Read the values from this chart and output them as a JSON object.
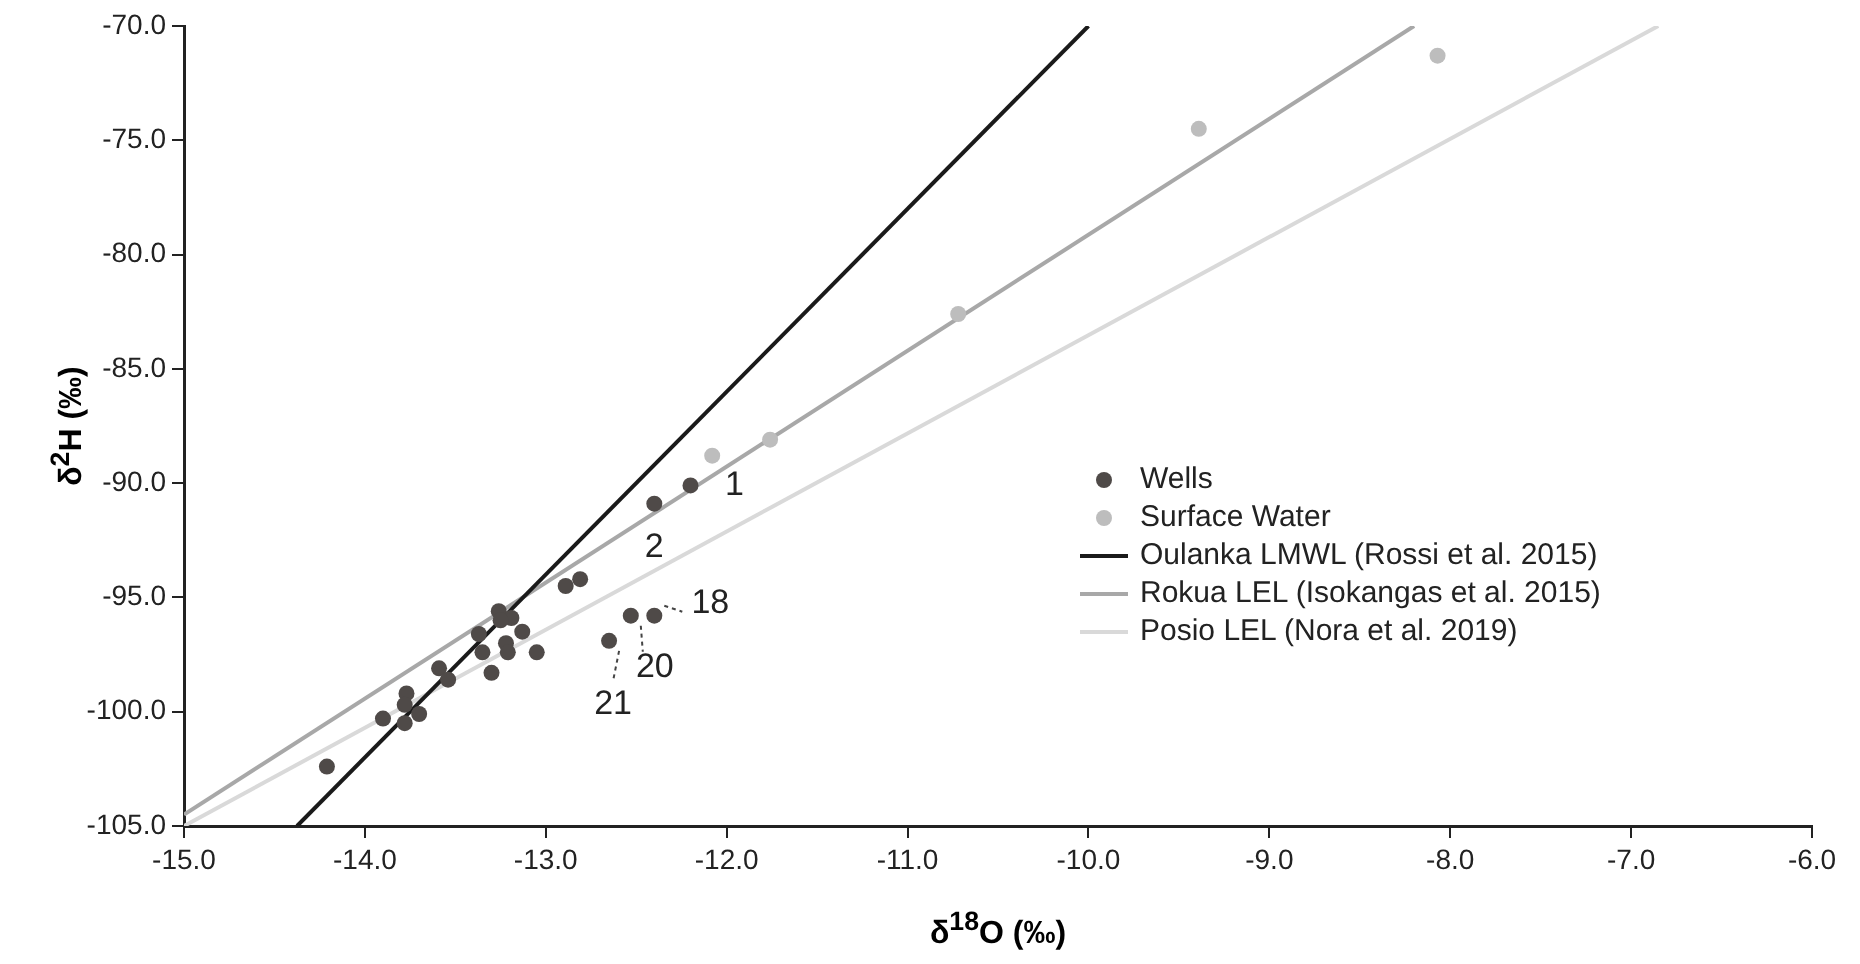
{
  "chart_data": {
    "type": "scatter",
    "xlabel": "δ$^{18}$O (‰)",
    "ylabel": "δ$^{2}$H (‰)",
    "xlim": [
      -15,
      -6
    ],
    "ylim": [
      -105,
      -70
    ],
    "xticks": [
      {
        "value": -15,
        "label": "-15.0"
      },
      {
        "value": -14,
        "label": "-14.0"
      },
      {
        "value": -13,
        "label": "-13.0"
      },
      {
        "value": -12,
        "label": "-12.0"
      },
      {
        "value": -11,
        "label": "-11.0"
      },
      {
        "value": -10,
        "label": "-10.0"
      },
      {
        "value": -9,
        "label": "-9.0"
      },
      {
        "value": -8,
        "label": "-8.0"
      },
      {
        "value": -7,
        "label": "-7.0"
      },
      {
        "value": -6,
        "label": "-6.0"
      }
    ],
    "yticks": [
      {
        "value": -105,
        "label": "-105.0"
      },
      {
        "value": -100,
        "label": "-100.0"
      },
      {
        "value": -95,
        "label": "-95.0"
      },
      {
        "value": -90,
        "label": "-90.0"
      },
      {
        "value": -85,
        "label": "-85.0"
      },
      {
        "value": -80,
        "label": "-80.0"
      },
      {
        "value": -75,
        "label": "-75.0"
      },
      {
        "value": -70,
        "label": "-70.0"
      }
    ],
    "grid": false,
    "legend": "right",
    "marker": "circle",
    "series": [
      {
        "name": "Wells",
        "color": "#4f4a48",
        "x": [
          -12.2,
          -12.4,
          -12.81,
          -12.89,
          -12.4,
          -12.53,
          -12.65,
          -13.26,
          -13.19,
          -13.25,
          -13.13,
          -13.37,
          -13.22,
          -13.35,
          -13.21,
          -13.05,
          -13.3,
          -13.59,
          -13.54,
          -13.77,
          -13.78,
          -13.7,
          -13.9,
          -13.78,
          -14.21
        ],
        "values": [
          -90.1,
          -90.9,
          -94.2,
          -94.5,
          -95.8,
          -95.8,
          -96.9,
          -95.6,
          -95.9,
          -96.0,
          -96.5,
          -96.6,
          -97.0,
          -97.4,
          -97.4,
          -97.4,
          -98.3,
          -98.1,
          -98.6,
          -99.2,
          -99.7,
          -100.1,
          -100.3,
          -100.5,
          -102.4
        ]
      },
      {
        "name": "Surface Water",
        "color": "#bdbdbd",
        "x": [
          -8.07,
          -9.39,
          -10.72,
          -11.76,
          -12.08
        ],
        "values": [
          -71.3,
          -74.5,
          -82.6,
          -88.1,
          -88.8
        ]
      },
      {
        "name": "Oulanka LMWL (Rossi et al. 2015)",
        "type": "line",
        "marker": "none",
        "color": "#1a1a1a",
        "x": [
          -14.375,
          -10
        ],
        "values": [
          -105,
          -70
        ]
      },
      {
        "name": "Rokua LEL (Isokangas et al. 2015)",
        "type": "line",
        "marker": "none",
        "color": "#a8a8a8",
        "x": [
          -15,
          -8.2
        ],
        "values": [
          -104.5,
          -70
        ]
      },
      {
        "name": "Posio LEL (Nora et al. 2019)",
        "type": "line",
        "marker": "none",
        "color": "#d9d9d9",
        "x": [
          -15,
          -6.85
        ],
        "values": [
          -105,
          -70
        ]
      }
    ],
    "annotations": [
      {
        "text": "1",
        "x": -12.2,
        "y": -90.1
      },
      {
        "text": "2",
        "x": -12.4,
        "y": -90.9
      },
      {
        "text": "18",
        "x": -12.4,
        "y": -95.8
      },
      {
        "text": "20",
        "x": -12.53,
        "y": -95.8
      },
      {
        "text": "21",
        "x": -12.65,
        "y": -96.9
      }
    ]
  }
}
